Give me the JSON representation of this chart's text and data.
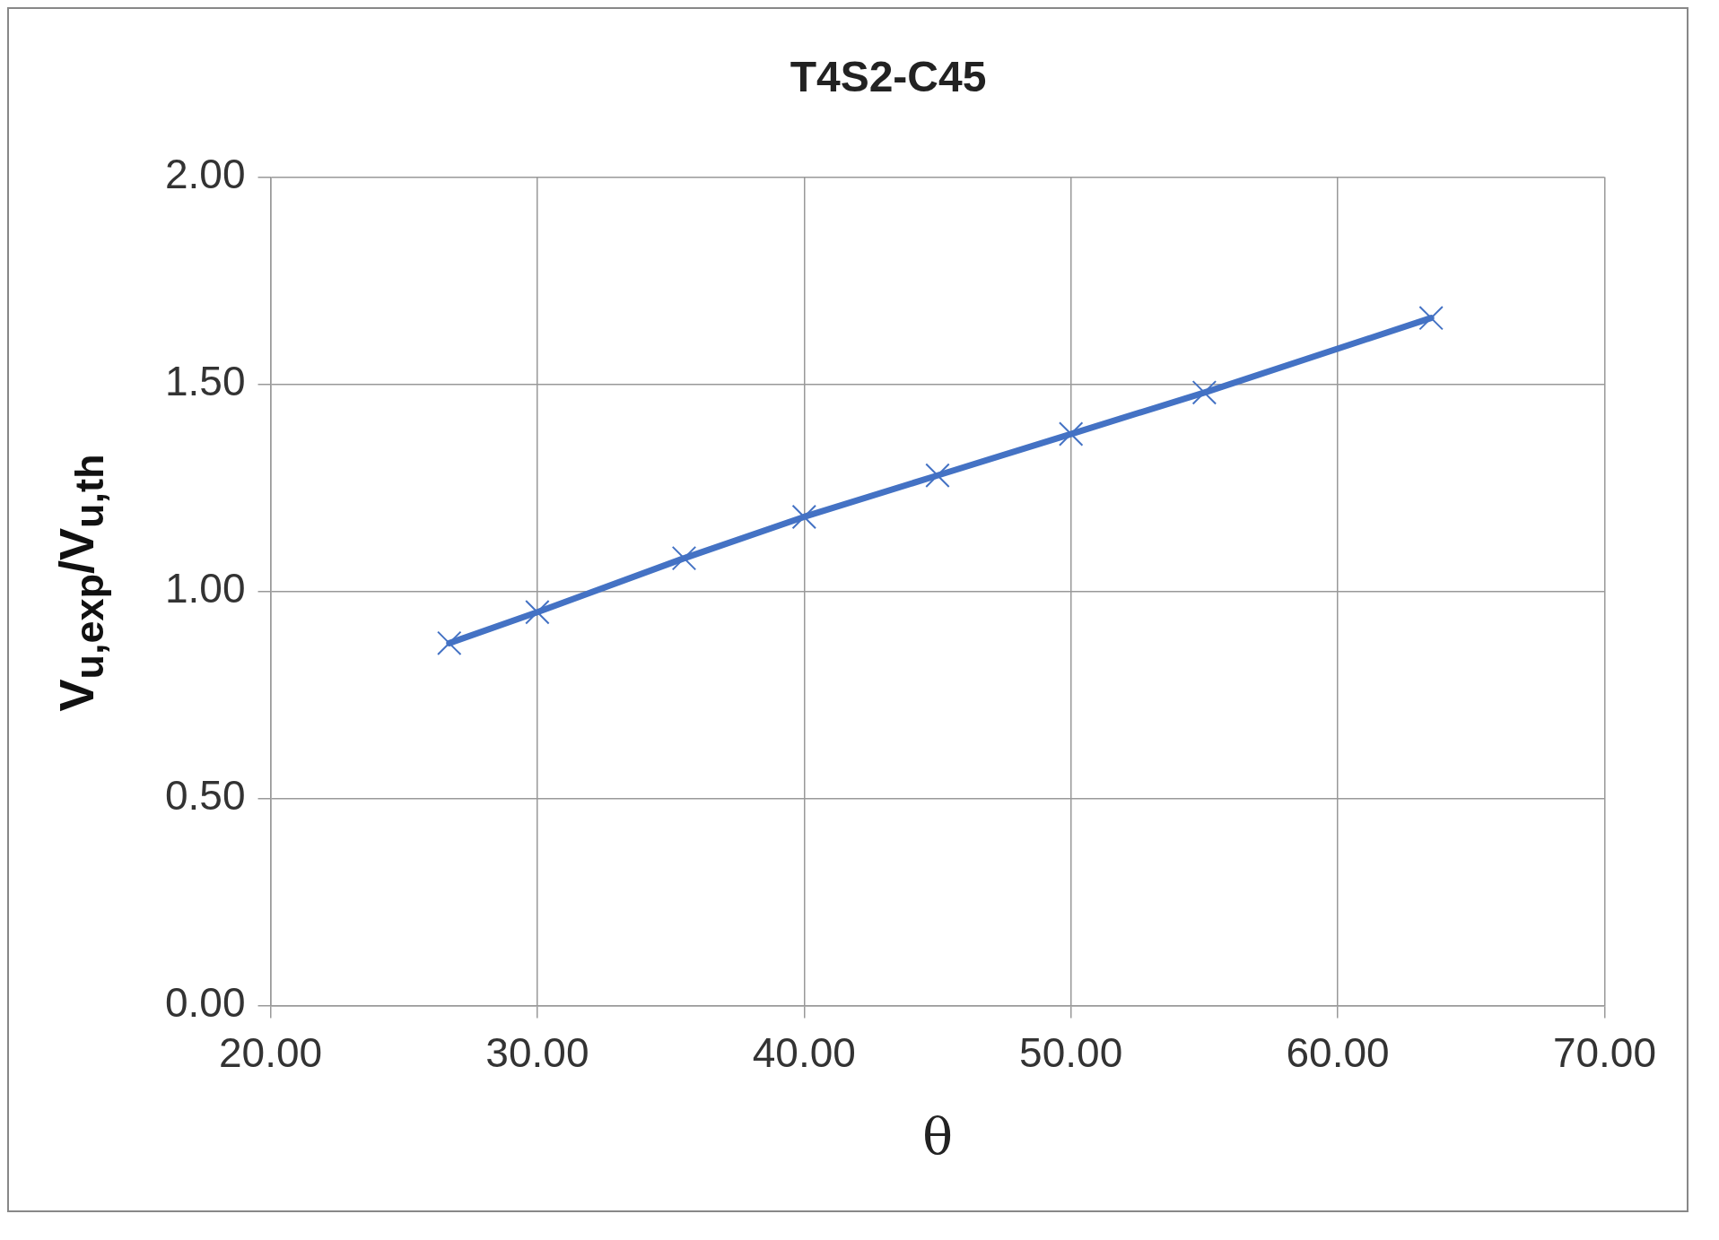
{
  "chart_data": {
    "type": "line",
    "title": "T4S2-C45",
    "xlabel": "θ",
    "ylabel": "V$_{u,exp}$/V$_{u,th}$",
    "x": [
      26.7,
      30.0,
      35.5,
      40.0,
      45.0,
      50.0,
      55.0,
      63.5
    ],
    "series": [
      {
        "color": "#4472c4",
        "values": [
          0.875,
          0.95,
          1.08,
          1.18,
          1.28,
          1.38,
          1.48,
          1.66
        ]
      }
    ],
    "xlim": [
      20,
      70
    ],
    "xticks": [
      {
        "value": 20,
        "label": "20.00"
      },
      {
        "value": 30,
        "label": "30.00"
      },
      {
        "value": 40,
        "label": "40.00"
      },
      {
        "value": 50,
        "label": "50.00"
      },
      {
        "value": 60,
        "label": "60.00"
      },
      {
        "value": 70,
        "label": "70.00"
      }
    ],
    "ylim": [
      0,
      2
    ],
    "yticks": [
      {
        "value": 0,
        "label": "0.00"
      },
      {
        "value": 0.5,
        "label": "0.50"
      },
      {
        "value": 1,
        "label": "1.00"
      },
      {
        "value": 1.5,
        "label": "1.50"
      },
      {
        "value": 2,
        "label": "2.00"
      }
    ],
    "grid": true,
    "legend": false,
    "marker": "cross",
    "line_style": "solid"
  }
}
